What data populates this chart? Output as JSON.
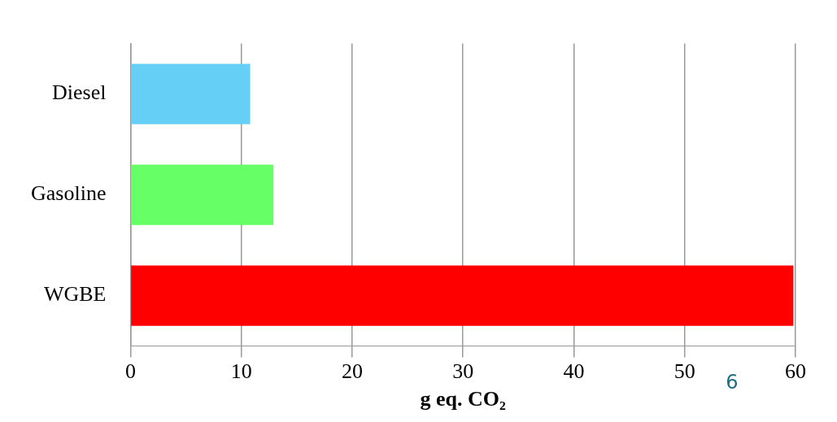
{
  "chart_data": {
    "type": "bar",
    "orientation": "horizontal",
    "xlabel": "g eq. CO₂",
    "categories": [
      "Diesel",
      "Gasoline",
      "WGBE"
    ],
    "values": [
      10.8,
      12.9,
      59.8
    ],
    "colors": [
      "#66cff5",
      "#66ff66",
      "#ff0000"
    ],
    "xlim": [
      0,
      60
    ],
    "xticks": [
      0,
      10,
      20,
      30,
      40,
      50,
      60
    ],
    "grid": "x",
    "annotations": [
      "6"
    ]
  }
}
